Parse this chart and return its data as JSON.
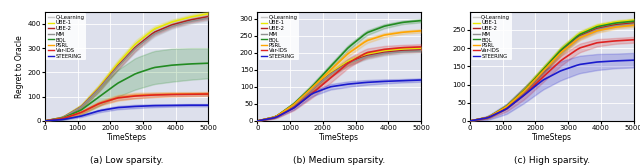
{
  "title_a": "(a) Low sparsity.",
  "title_b": "(b) Medium sparsity.",
  "title_c": "(c) High sparsity.",
  "xlabel": "TimeSteps",
  "ylabel": "Regret to Oracle",
  "xlim": [
    0,
    5000
  ],
  "xticks": [
    0,
    1000,
    2000,
    3000,
    4000,
    5000
  ],
  "colors": {
    "Q-Learning": "#c8c8c8",
    "UBE-1": "#e8e800",
    "UBE-2": "#b02020",
    "MM": "#909090",
    "BQL": "#228B22",
    "PSRL": "#FFA500",
    "Var-IDS": "#dd2222",
    "STEERING": "#1a1acd"
  },
  "order": [
    "Q-Learning",
    "UBE-1",
    "UBE-2",
    "MM",
    "BQL",
    "PSRL",
    "Var-IDS",
    "STEERING"
  ],
  "panel_a": {
    "ylim": [
      0,
      450
    ],
    "yticks": [
      0,
      100,
      200,
      300,
      400
    ],
    "series": {
      "Q-Learning": {
        "mean": [
          0,
          15,
          60,
          140,
          230,
          310,
          370,
          405,
          425,
          440
        ],
        "std": [
          0,
          3,
          8,
          12,
          15,
          15,
          12,
          10,
          10,
          10
        ]
      },
      "UBE-1": {
        "mean": [
          0,
          15,
          60,
          140,
          235,
          318,
          378,
          408,
          428,
          442
        ],
        "std": [
          0,
          3,
          8,
          12,
          15,
          15,
          12,
          10,
          10,
          10
        ]
      },
      "UBE-2": {
        "mean": [
          0,
          14,
          58,
          135,
          225,
          305,
          365,
          396,
          416,
          430
        ],
        "std": [
          0,
          3,
          8,
          12,
          15,
          15,
          12,
          10,
          10,
          10
        ]
      },
      "MM": {
        "mean": [
          0,
          14,
          57,
          133,
          222,
          300,
          358,
          390,
          410,
          424
        ],
        "std": [
          0,
          3,
          7,
          11,
          14,
          14,
          11,
          9,
          9,
          9
        ]
      },
      "BQL": {
        "mean": [
          0,
          12,
          45,
          100,
          155,
          195,
          220,
          230,
          235,
          238
        ],
        "std": [
          0,
          8,
          20,
          38,
          55,
          65,
          68,
          68,
          65,
          62
        ]
      },
      "PSRL": {
        "mean": [
          0,
          10,
          35,
          72,
          95,
          105,
          108,
          110,
          111,
          112
        ],
        "std": [
          0,
          3,
          7,
          10,
          12,
          12,
          10,
          9,
          8,
          8
        ]
      },
      "Var-IDS": {
        "mean": [
          0,
          10,
          35,
          72,
          95,
          103,
          107,
          109,
          110,
          111
        ],
        "std": [
          0,
          2,
          5,
          7,
          9,
          9,
          8,
          7,
          7,
          7
        ]
      },
      "STEERING": {
        "mean": [
          0,
          6,
          20,
          42,
          55,
          60,
          63,
          64,
          65,
          65
        ],
        "std": [
          0,
          2,
          4,
          6,
          7,
          7,
          6,
          5,
          5,
          5
        ]
      }
    }
  },
  "panel_b": {
    "ylim": [
      0,
      320
    ],
    "yticks": [
      0,
      50,
      100,
      150,
      200,
      250,
      300
    ],
    "series": {
      "Q-Learning": {
        "mean": [
          0,
          12,
          48,
          95,
          140,
          175,
          195,
          205,
          210,
          212
        ],
        "std": [
          0,
          2,
          5,
          8,
          8,
          8,
          7,
          6,
          5,
          5
        ]
      },
      "UBE-1": {
        "mean": [
          0,
          12,
          48,
          95,
          140,
          175,
          196,
          206,
          211,
          213
        ],
        "std": [
          0,
          2,
          5,
          8,
          8,
          8,
          7,
          6,
          5,
          5
        ]
      },
      "UBE-2": {
        "mean": [
          0,
          12,
          47,
          93,
          137,
          171,
          191,
          201,
          206,
          208
        ],
        "std": [
          0,
          2,
          5,
          8,
          8,
          8,
          7,
          6,
          5,
          5
        ]
      },
      "MM": {
        "mean": [
          0,
          12,
          47,
          93,
          136,
          169,
          188,
          198,
          203,
          205
        ],
        "std": [
          0,
          2,
          5,
          8,
          8,
          8,
          7,
          6,
          5,
          5
        ]
      },
      "BQL": {
        "mean": [
          0,
          12,
          50,
          100,
          158,
          215,
          258,
          278,
          289,
          294
        ],
        "std": [
          0,
          2,
          5,
          8,
          8,
          8,
          7,
          6,
          5,
          5
        ]
      },
      "PSRL": {
        "mean": [
          0,
          12,
          48,
          97,
          148,
          198,
          235,
          252,
          260,
          264
        ],
        "std": [
          0,
          2,
          5,
          8,
          8,
          8,
          7,
          6,
          5,
          5
        ]
      },
      "Var-IDS": {
        "mean": [
          0,
          10,
          38,
          80,
          125,
          170,
          200,
          210,
          215,
          217
        ],
        "std": [
          0,
          3,
          7,
          12,
          14,
          14,
          12,
          10,
          8,
          8
        ]
      },
      "STEERING": {
        "mean": [
          0,
          10,
          38,
          80,
          100,
          108,
          113,
          116,
          118,
          120
        ],
        "std": [
          0,
          2,
          5,
          8,
          8,
          8,
          7,
          6,
          5,
          5
        ]
      }
    }
  },
  "panel_c": {
    "ylim": [
      0,
      300
    ],
    "yticks": [
      0,
      50,
      100,
      150,
      200,
      250
    ],
    "series": {
      "Q-Learning": {
        "mean": [
          0,
          10,
          40,
          85,
          140,
          195,
          238,
          260,
          270,
          275
        ],
        "std": [
          0,
          2,
          5,
          8,
          8,
          8,
          7,
          6,
          5,
          5
        ]
      },
      "UBE-1": {
        "mean": [
          0,
          10,
          40,
          86,
          142,
          197,
          240,
          262,
          272,
          277
        ],
        "std": [
          0,
          2,
          5,
          8,
          8,
          8,
          7,
          6,
          5,
          5
        ]
      },
      "UBE-2": {
        "mean": [
          0,
          10,
          39,
          84,
          138,
          191,
          233,
          254,
          264,
          269
        ],
        "std": [
          0,
          2,
          5,
          8,
          8,
          8,
          7,
          6,
          5,
          5
        ]
      },
      "MM": {
        "mean": [
          0,
          10,
          39,
          83,
          136,
          188,
          230,
          251,
          261,
          266
        ],
        "std": [
          0,
          2,
          5,
          8,
          8,
          8,
          7,
          6,
          5,
          5
        ]
      },
      "BQL": {
        "mean": [
          0,
          10,
          40,
          85,
          140,
          195,
          237,
          259,
          269,
          274
        ],
        "std": [
          0,
          2,
          5,
          8,
          8,
          8,
          7,
          6,
          5,
          5
        ]
      },
      "PSRL": {
        "mean": [
          0,
          10,
          39,
          83,
          136,
          188,
          228,
          248,
          258,
          263
        ],
        "std": [
          0,
          2,
          5,
          8,
          8,
          8,
          7,
          6,
          5,
          5
        ]
      },
      "Var-IDS": {
        "mean": [
          0,
          9,
          33,
          72,
          120,
          166,
          200,
          215,
          220,
          223
        ],
        "std": [
          0,
          3,
          7,
          12,
          14,
          14,
          12,
          10,
          8,
          8
        ]
      },
      "STEERING": {
        "mean": [
          0,
          9,
          33,
          72,
          112,
          138,
          155,
          162,
          165,
          167
        ],
        "std": [
          0,
          6,
          14,
          22,
          26,
          26,
          24,
          22,
          20,
          20
        ]
      }
    }
  }
}
